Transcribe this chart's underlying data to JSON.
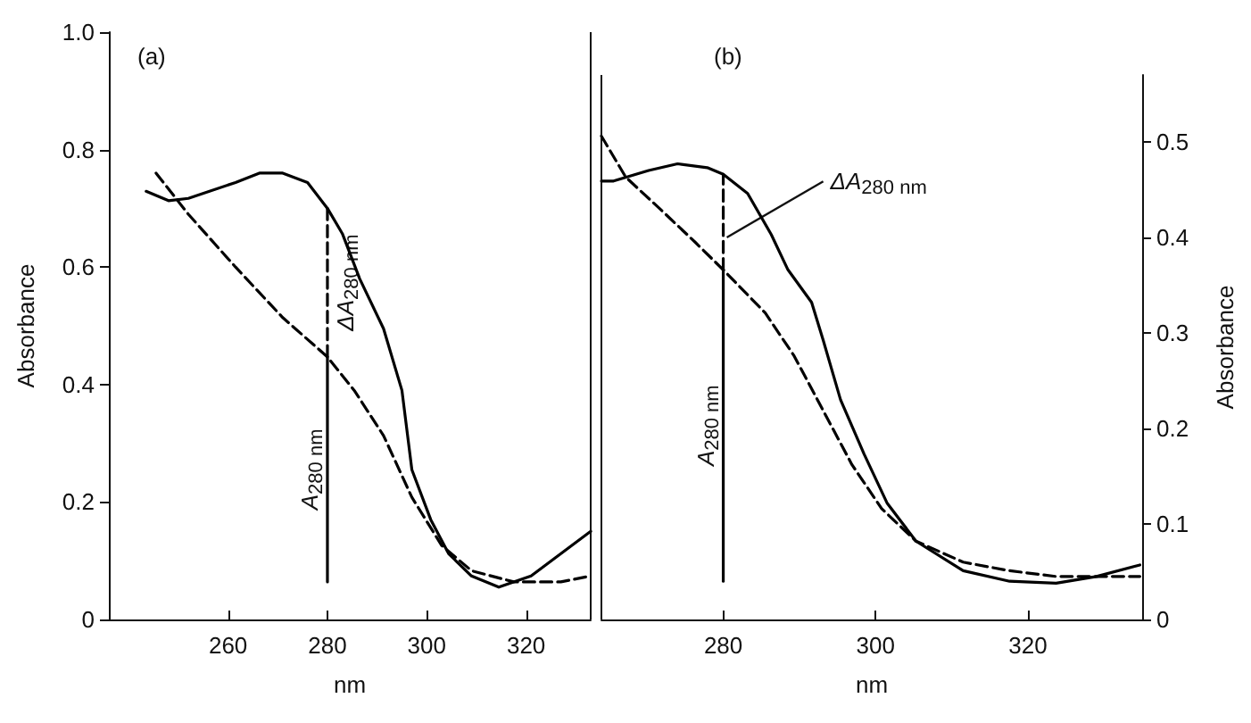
{
  "chart_data": [
    {
      "type": "line",
      "title": "(a)",
      "xlabel": "nm",
      "ylabel": "Absorbance",
      "xlim": [
        236,
        333
      ],
      "xticks": [
        260,
        280,
        300,
        320
      ],
      "ylim": [
        0,
        1
      ],
      "yticks": [
        0,
        0.2,
        0.4,
        0.6,
        0.8,
        {
          "value": 1,
          "label": "1.0"
        }
      ],
      "marker": "none",
      "grid": false,
      "series": [
        {
          "color": "#000000",
          "line_style": "solid",
          "x": [
            243.5,
            248,
            252,
            261.5,
            266.3,
            271,
            276,
            280,
            283,
            286.5,
            291.3,
            295,
            297,
            300.8,
            304.4,
            309,
            314.5,
            321,
            333
          ],
          "values": [
            0.729,
            0.713,
            0.717,
            0.744,
            0.76,
            0.76,
            0.744,
            0.7,
            0.657,
            0.58,
            0.495,
            0.39,
            0.255,
            0.17,
            0.112,
            0.074,
            0.055,
            0.074,
            0.15
          ]
        },
        {
          "color": "#000000",
          "line_style": "dashed",
          "x": [
            245.5,
            252,
            261.5,
            271,
            280,
            285.4,
            291.3,
            297,
            303,
            309,
            317.5,
            327,
            333
          ],
          "values": [
            0.76,
            0.69,
            0.6,
            0.514,
            0.447,
            0.39,
            0.313,
            0.208,
            0.126,
            0.083,
            0.064,
            0.064,
            0.074
          ]
        },
        {
          "color": "#000000",
          "line_style": "dashed",
          "x": [
            280,
            280
          ],
          "values": [
            0.447,
            0.7
          ]
        },
        {
          "color": "#000000",
          "line_style": "solid",
          "x": [
            280,
            280
          ],
          "values": [
            0.064,
            0.447
          ]
        }
      ],
      "annotations": [
        "ΔA$_{280 nm}$",
        "A$_{280 nm}$"
      ]
    },
    {
      "type": "line",
      "title": "(b)",
      "xlabel": "nm",
      "ylabel": "Absorbance",
      "xlim": [
        264,
        335
      ],
      "xticks": [
        280,
        300,
        320
      ],
      "ylim": [
        0,
        0.57
      ],
      "yticks": [
        0,
        0.1,
        0.2,
        0.3,
        0.4,
        0.5
      ],
      "marker": "none",
      "grid": false,
      "series": [
        {
          "color": "#000000",
          "line_style": "solid",
          "x": [
            264,
            265.6,
            270.2,
            274,
            277.9,
            280,
            283.2,
            286.3,
            288.5,
            291.6,
            293.1,
            295.4,
            298.5,
            301.5,
            305.3,
            311.5,
            317.6,
            323.7,
            329,
            334.7
          ],
          "values": [
            0.459,
            0.459,
            0.47,
            0.477,
            0.473,
            0.466,
            0.446,
            0.403,
            0.366,
            0.332,
            0.293,
            0.23,
            0.173,
            0.122,
            0.082,
            0.051,
            0.04,
            0.038,
            0.045,
            0.057
          ]
        },
        {
          "color": "#000000",
          "line_style": "dashed",
          "x": [
            264,
            267.2,
            271.8,
            276.3,
            280,
            285.5,
            289.3,
            293.1,
            296.9,
            300.8,
            305.3,
            311.5,
            317.6,
            323.7,
            334.7
          ],
          "values": [
            0.506,
            0.463,
            0.429,
            0.395,
            0.366,
            0.321,
            0.276,
            0.219,
            0.162,
            0.116,
            0.082,
            0.06,
            0.051,
            0.045,
            0.045
          ]
        },
        {
          "color": "#000000",
          "line_style": "dashed",
          "x": [
            280,
            280
          ],
          "values": [
            0.366,
            0.466
          ]
        },
        {
          "color": "#000000",
          "line_style": "solid",
          "x": [
            280,
            280
          ],
          "values": [
            0.04,
            0.366
          ]
        }
      ],
      "annotations": [
        {
          "text": "ΔA$_{280 nm}$",
          "x": 280,
          "y": 0.4
        },
        "A$_{280 nm}$"
      ]
    }
  ]
}
